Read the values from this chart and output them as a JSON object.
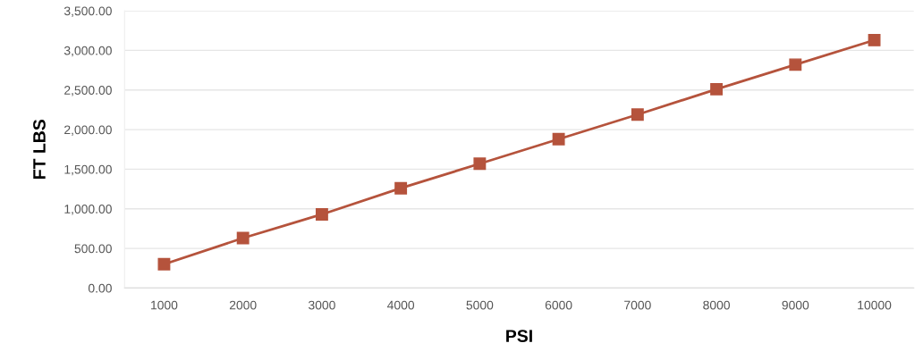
{
  "chart_data": {
    "type": "line",
    "xlabel": "PSI",
    "ylabel": "FT LBS",
    "categories": [
      "1000",
      "2000",
      "3000",
      "4000",
      "5000",
      "6000",
      "7000",
      "8000",
      "9000",
      "10000"
    ],
    "series": [
      {
        "color": "#b5533c",
        "values": [
          300,
          630,
          930,
          1260,
          1570,
          1880,
          2190,
          2510,
          2820,
          3130
        ]
      }
    ],
    "ylim": [
      0,
      3500
    ],
    "yticks": [
      {
        "value": 0,
        "label": "0.00"
      },
      {
        "value": 500,
        "label": "500.00"
      },
      {
        "value": 1000,
        "label": "1,000.00"
      },
      {
        "value": 1500,
        "label": "1,500.00"
      },
      {
        "value": 2000,
        "label": "2,000.00"
      },
      {
        "value": 2500,
        "label": "2,500.00"
      },
      {
        "value": 3000,
        "label": "3,000.00"
      },
      {
        "value": 3500,
        "label": "3,500.00"
      }
    ],
    "grid": "y",
    "marker": "square",
    "line_style": "solid",
    "legend": false
  }
}
